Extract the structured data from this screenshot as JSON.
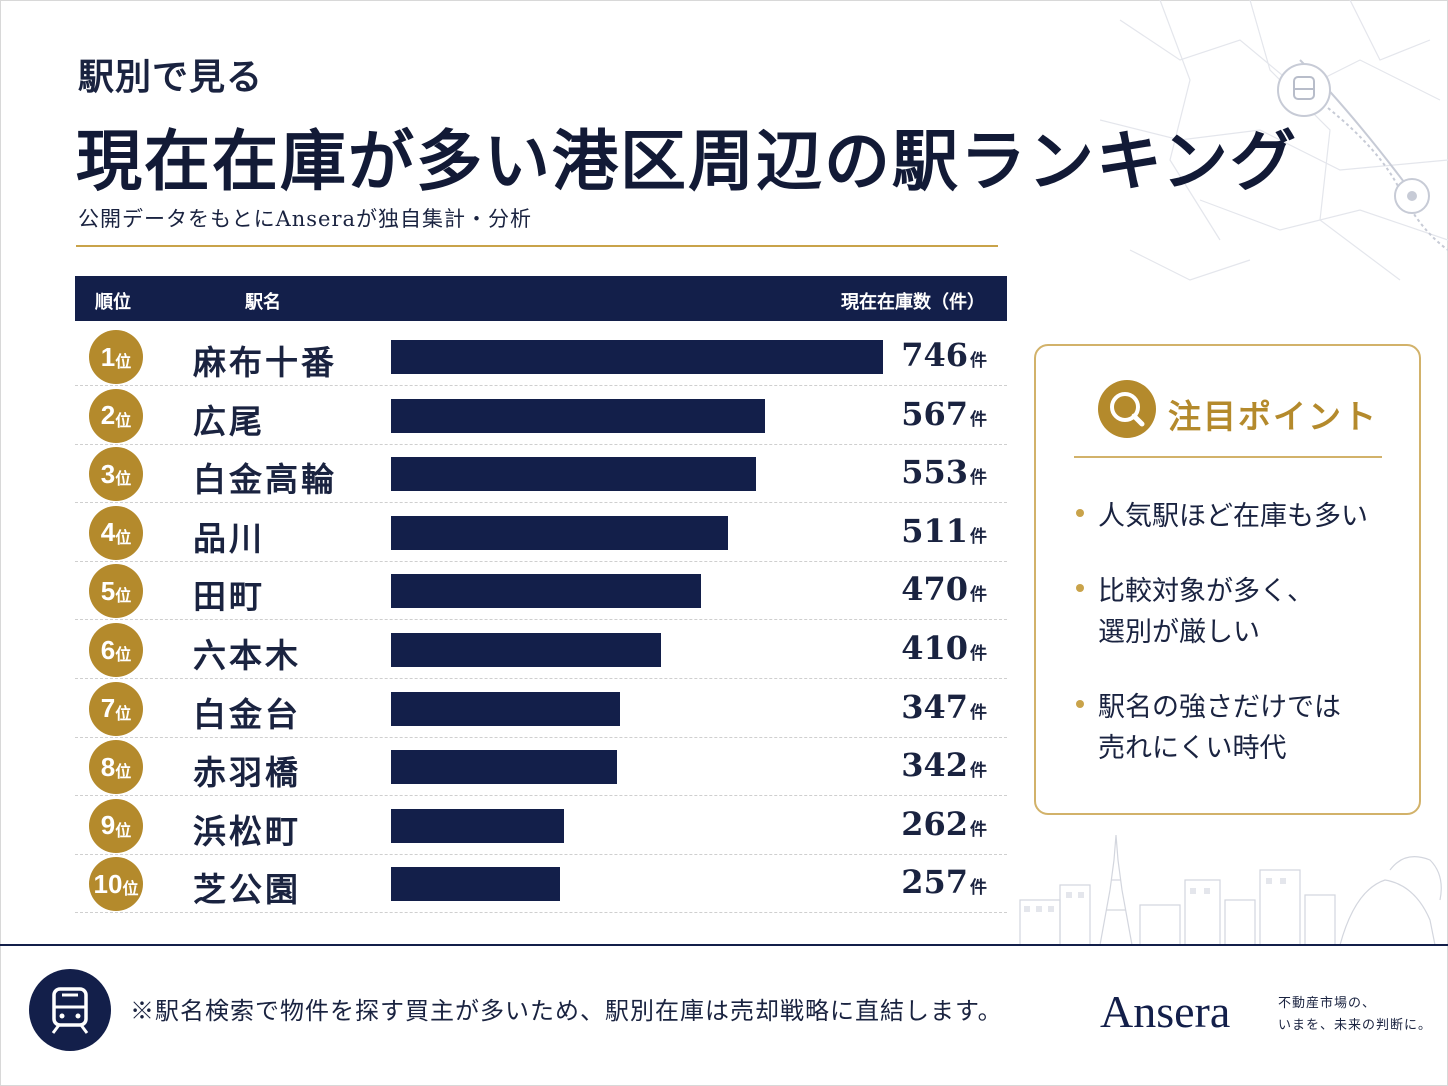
{
  "header": {
    "subtitle_small": "駅別で見る",
    "title": "現在在庫が多い港区周辺の駅ランキング",
    "source_note": "公開データをもとにAnseraが独自集計・分析"
  },
  "table": {
    "col_rank": "順位",
    "col_station": "駅名",
    "col_count": "現在在庫数（件）",
    "rank_suffix": "位",
    "unit": "件"
  },
  "chart_data": {
    "type": "bar",
    "orientation": "horizontal",
    "categories": [
      "麻布十番",
      "広尾",
      "白金高輪",
      "品川",
      "田町",
      "六本木",
      "白金台",
      "赤羽橋",
      "浜松町",
      "芝公園"
    ],
    "ranks": [
      "1",
      "2",
      "3",
      "4",
      "5",
      "6",
      "7",
      "8",
      "9",
      "10"
    ],
    "values": [
      746,
      567,
      553,
      511,
      470,
      410,
      347,
      342,
      262,
      257
    ],
    "value_labels": [
      "746",
      "567",
      "553",
      "511",
      "470",
      "410",
      "347",
      "342",
      "262",
      "257"
    ],
    "xlim": [
      0,
      746
    ],
    "bar_color": "#131f4a",
    "grid": false
  },
  "points": {
    "title": "注目ポイント",
    "items": [
      {
        "lines": [
          "人気駅ほど在庫も多い"
        ]
      },
      {
        "lines": [
          "比較対象が多く、",
          "選別が厳しい"
        ]
      },
      {
        "lines": [
          "駅名の強さだけでは",
          "売れにくい時代"
        ]
      }
    ]
  },
  "footer": {
    "note": "※駅名検索で物件を探す買主が多いため、駅別在庫は売却戦略に直結します。",
    "brand": "Ansera",
    "tagline_1": "不動産市場の、",
    "tagline_2": "いまを、未来の判断に。"
  },
  "icons": {
    "header_icon": "train-icon",
    "points_icon": "search-icon",
    "footer_icon": "train-icon"
  },
  "colors": {
    "navy": "#131f4a",
    "gold": "#b48a2c",
    "gold_light": "#d2b26a"
  }
}
